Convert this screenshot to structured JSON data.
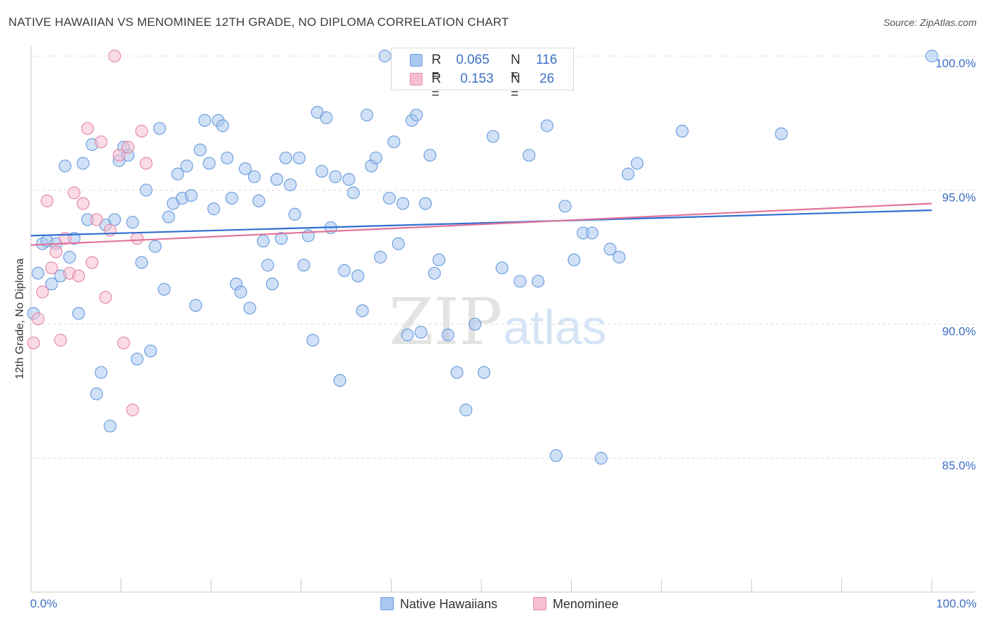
{
  "title": "NATIVE HAWAIIAN VS MENOMINEE 12TH GRADE, NO DIPLOMA CORRELATION CHART",
  "source": "Source: ZipAtlas.com",
  "watermark": {
    "zip": "ZIP",
    "atlas": "atlas"
  },
  "legend_top": {
    "rows": [
      {
        "r_label": "R =",
        "r_value": "0.065",
        "n_label": "N =",
        "n_value": "116"
      },
      {
        "r_label": "R =",
        "r_value": "0.153",
        "n_label": "N =",
        "n_value": "26"
      }
    ]
  },
  "legend_bottom": [
    {
      "label": "Native Hawaiians"
    },
    {
      "label": "Menominee"
    }
  ],
  "colors": {
    "blue_fill": "#a9c8f0",
    "blue_stroke": "#6f9fdd",
    "blue_line": "#2f6fd1",
    "pink_fill": "#f7bfd1",
    "pink_stroke": "#e58aab",
    "pink_line": "#e07399",
    "tick_text": "#3d6fc4",
    "grid": "#dddddd"
  },
  "chart_data": {
    "type": "scatter",
    "title": "NATIVE HAWAIIAN VS MENOMINEE 12TH GRADE, NO DIPLOMA CORRELATION CHART",
    "xlabel": "",
    "ylabel": "12th Grade, No Diploma",
    "xlim": [
      0,
      100
    ],
    "ylim": [
      80.0,
      101.0
    ],
    "x_tick_labels": [
      "0.0%",
      "100.0%"
    ],
    "y_ticks": [
      85.0,
      90.0,
      95.0,
      100.0
    ],
    "y_tick_labels": [
      "85.0%",
      "90.0%",
      "95.0%",
      "100.0%"
    ],
    "grid": true,
    "legend": "top-center",
    "series": [
      {
        "name": "Native Hawaiians",
        "r": 0.065,
        "n": 116,
        "trend": [
          [
            0,
            93.3
          ],
          [
            100,
            94.25
          ]
        ],
        "points": [
          [
            0.3,
            90.4
          ],
          [
            0.8,
            91.9
          ],
          [
            1.3,
            93.0
          ],
          [
            1.8,
            93.1
          ],
          [
            2.3,
            91.5
          ],
          [
            2.8,
            93.0
          ],
          [
            3.3,
            91.8
          ],
          [
            3.8,
            95.9
          ],
          [
            4.3,
            92.5
          ],
          [
            4.8,
            93.2
          ],
          [
            5.3,
            90.4
          ],
          [
            5.8,
            96.0
          ],
          [
            6.3,
            93.9
          ],
          [
            6.8,
            96.7
          ],
          [
            7.3,
            87.4
          ],
          [
            7.8,
            88.2
          ],
          [
            8.3,
            93.7
          ],
          [
            8.8,
            86.2
          ],
          [
            9.3,
            93.9
          ],
          [
            9.8,
            96.1
          ],
          [
            10.3,
            96.6
          ],
          [
            10.8,
            96.3
          ],
          [
            11.3,
            93.8
          ],
          [
            11.8,
            88.7
          ],
          [
            12.3,
            92.3
          ],
          [
            12.8,
            95.0
          ],
          [
            13.3,
            89.0
          ],
          [
            13.8,
            92.9
          ],
          [
            14.3,
            97.3
          ],
          [
            14.8,
            91.3
          ],
          [
            15.3,
            94.0
          ],
          [
            15.8,
            94.5
          ],
          [
            16.3,
            95.6
          ],
          [
            16.8,
            94.7
          ],
          [
            17.3,
            95.9
          ],
          [
            17.8,
            94.8
          ],
          [
            18.3,
            90.7
          ],
          [
            18.8,
            96.5
          ],
          [
            19.3,
            97.6
          ],
          [
            19.8,
            96.0
          ],
          [
            20.3,
            94.3
          ],
          [
            20.8,
            97.6
          ],
          [
            21.3,
            97.4
          ],
          [
            21.8,
            96.2
          ],
          [
            22.3,
            94.7
          ],
          [
            22.8,
            91.5
          ],
          [
            23.3,
            91.2
          ],
          [
            23.8,
            95.8
          ],
          [
            24.3,
            90.6
          ],
          [
            24.8,
            95.5
          ],
          [
            25.3,
            94.6
          ],
          [
            25.8,
            93.1
          ],
          [
            26.3,
            92.2
          ],
          [
            26.8,
            91.5
          ],
          [
            27.3,
            95.4
          ],
          [
            27.8,
            93.2
          ],
          [
            28.3,
            96.2
          ],
          [
            28.8,
            95.2
          ],
          [
            29.3,
            94.1
          ],
          [
            29.8,
            96.2
          ],
          [
            30.3,
            92.2
          ],
          [
            30.8,
            93.3
          ],
          [
            31.3,
            89.4
          ],
          [
            31.8,
            97.9
          ],
          [
            32.3,
            95.7
          ],
          [
            32.8,
            97.7
          ],
          [
            33.3,
            93.6
          ],
          [
            33.8,
            95.5
          ],
          [
            34.3,
            87.9
          ],
          [
            34.8,
            92.0
          ],
          [
            35.3,
            95.4
          ],
          [
            35.8,
            94.9
          ],
          [
            36.3,
            91.8
          ],
          [
            36.8,
            90.5
          ],
          [
            37.3,
            97.8
          ],
          [
            37.8,
            95.9
          ],
          [
            38.3,
            96.2
          ],
          [
            38.8,
            92.5
          ],
          [
            39.3,
            100.0
          ],
          [
            39.8,
            94.7
          ],
          [
            40.3,
            96.8
          ],
          [
            40.8,
            93.0
          ],
          [
            41.3,
            94.5
          ],
          [
            41.8,
            89.6
          ],
          [
            42.3,
            97.6
          ],
          [
            42.8,
            97.8
          ],
          [
            43.3,
            89.7
          ],
          [
            43.8,
            94.5
          ],
          [
            44.3,
            96.3
          ],
          [
            44.8,
            91.9
          ],
          [
            45.3,
            92.4
          ],
          [
            46.3,
            89.6
          ],
          [
            47.3,
            88.2
          ],
          [
            48.3,
            86.8
          ],
          [
            49.3,
            90.0
          ],
          [
            50.3,
            88.2
          ],
          [
            51.3,
            97.0
          ],
          [
            52.3,
            92.1
          ],
          [
            53.3,
            100.0
          ],
          [
            54.3,
            91.6
          ],
          [
            55.3,
            96.3
          ],
          [
            56.3,
            91.6
          ],
          [
            57.3,
            97.4
          ],
          [
            58.3,
            85.1
          ],
          [
            59.3,
            94.4
          ],
          [
            60.3,
            92.4
          ],
          [
            61.3,
            93.4
          ],
          [
            62.3,
            93.4
          ],
          [
            63.3,
            85.0
          ],
          [
            64.3,
            92.8
          ],
          [
            65.3,
            92.5
          ],
          [
            66.3,
            95.6
          ],
          [
            67.3,
            96.0
          ],
          [
            72.3,
            97.2
          ],
          [
            100.0,
            100.0
          ],
          [
            83.3,
            97.1
          ]
        ]
      },
      {
        "name": "Menominee",
        "r": 0.153,
        "n": 26,
        "trend": [
          [
            0,
            92.95
          ],
          [
            100,
            94.5
          ]
        ],
        "points": [
          [
            0.3,
            89.3
          ],
          [
            0.8,
            90.2
          ],
          [
            1.3,
            91.2
          ],
          [
            1.8,
            94.6
          ],
          [
            2.3,
            92.1
          ],
          [
            2.8,
            92.7
          ],
          [
            3.3,
            89.4
          ],
          [
            3.8,
            93.2
          ],
          [
            4.3,
            91.9
          ],
          [
            4.8,
            94.9
          ],
          [
            5.3,
            91.8
          ],
          [
            5.8,
            94.5
          ],
          [
            6.3,
            97.3
          ],
          [
            6.8,
            92.3
          ],
          [
            7.3,
            93.9
          ],
          [
            7.8,
            96.8
          ],
          [
            8.3,
            91.0
          ],
          [
            8.8,
            93.5
          ],
          [
            9.3,
            100.0
          ],
          [
            9.8,
            96.3
          ],
          [
            10.3,
            89.3
          ],
          [
            10.8,
            96.6
          ],
          [
            11.3,
            86.8
          ],
          [
            11.8,
            93.2
          ],
          [
            12.3,
            97.2
          ],
          [
            12.8,
            96.0
          ]
        ]
      }
    ]
  }
}
